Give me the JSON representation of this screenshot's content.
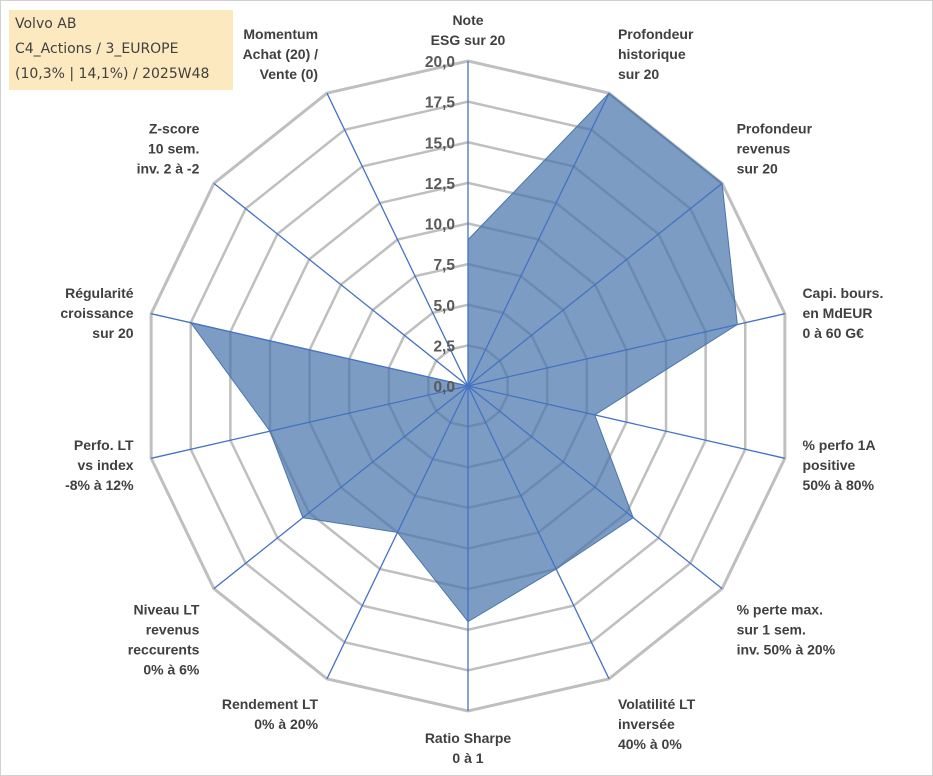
{
  "header": {
    "line1": "Volvo AB",
    "line2": "C4_Actions / 3_EUROPE",
    "line3": "(10,3% | 14,1%) / 2025W48"
  },
  "chart_data": {
    "type": "radar",
    "rmin": 0,
    "rmax": 20,
    "tick_step": 2.5,
    "tick_labels": [
      "0,0",
      "2,5",
      "5,0",
      "7,5",
      "10,0",
      "12,5",
      "15,0",
      "17,5",
      "20,0"
    ],
    "grid": true,
    "fill_color": "#4a76ad",
    "axis_color": "#4472c4",
    "grid_color": "#bfbfbf",
    "axes": [
      {
        "label": [
          "Note",
          "ESG sur 20"
        ],
        "value": 9.0
      },
      {
        "label": [
          "Profondeur",
          "historique",
          "sur 20"
        ],
        "value": 20.0
      },
      {
        "label": [
          "Profondeur",
          "revenus",
          "sur 20"
        ],
        "value": 20.0
      },
      {
        "label": [
          "Capi. bours.",
          "en MdEUR",
          "0 à 60 G€"
        ],
        "value": 17.0
      },
      {
        "label": [
          "% perfo 1A",
          "positive",
          "50% à 80%"
        ],
        "value": 8.0
      },
      {
        "label": [
          "% perte max.",
          "sur 1 sem.",
          "inv. 50% à 20%"
        ],
        "value": 13.0
      },
      {
        "label": [
          "Volatilité LT",
          "inversée",
          "40% à 0%"
        ],
        "value": 12.5
      },
      {
        "label": [
          "Ratio Sharpe",
          "0 à 1"
        ],
        "value": 14.5
      },
      {
        "label": [
          "Rendement LT",
          "0% à 20%"
        ],
        "value": 10.0
      },
      {
        "label": [
          "Niveau LT",
          "revenus",
          "reccurents",
          "0% à 6%"
        ],
        "value": 13.0
      },
      {
        "label": [
          "Perfo. LT",
          "vs index",
          "-8% à 12%"
        ],
        "value": 12.5
      },
      {
        "label": [
          "Régularité",
          "croissance",
          "sur 20"
        ],
        "value": 17.5
      },
      {
        "label": [
          "Z-score",
          "10 sem.",
          "inv. 2 à -2"
        ],
        "value": 0.0
      },
      {
        "label": [
          "Momentum",
          "Achat (20) /",
          "Vente (0)"
        ],
        "value": 0.0
      }
    ]
  }
}
